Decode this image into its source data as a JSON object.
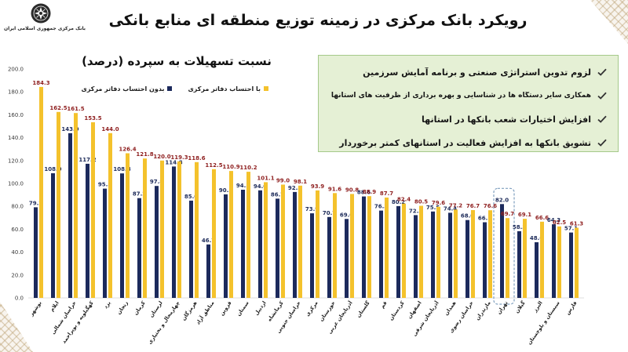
{
  "header": {
    "title": "رویکرد بانک مرکزی در زمینه توزیع منطقه ای منابع بانکی",
    "logo_text": "بانک مرکزی جمهوری اسلامی ایران",
    "logo_icon": "central-bank-emblem-icon"
  },
  "notes": {
    "icon": "check-icon",
    "items": [
      "لزوم تدوین استراتژی صنعتی و برنامه آمایش سرزمین",
      "همکاری سایر دستگاه ها در شناسایی و بهره برداری از ظرفیت های استانها",
      "افزایش اختیارات شعب بانکها در استانها",
      "تشویق بانکها به افزایش فعالیت در استانهای کمتر برخوردار"
    ]
  },
  "colors": {
    "navy": "#1c2a5c",
    "yellow": "#f4c22c",
    "navy_label": "#1d2b5a",
    "yellow_label": "#8e1e1e",
    "note_bg": "#e5f0d5",
    "note_border": "#a5c98a",
    "highlight": "#7f9fbf"
  },
  "chart_data": {
    "type": "bar",
    "title": "نسبت تسهیلات به سپرده (درصد)",
    "xlabel": "",
    "ylabel": "",
    "ylim": [
      0,
      200
    ],
    "yticks": [
      0,
      20,
      40,
      60,
      80,
      100,
      120,
      140,
      160,
      180,
      200
    ],
    "grid": false,
    "legend_position": "top-left",
    "value_labels": true,
    "highlight_category": "تهران",
    "categories": [
      "بوشهر",
      "ایلام",
      "خراسان شمالی",
      "کهگیلویه و بویراحمد",
      "یزد",
      "زنجان",
      "کرمان",
      "لرستان",
      "چهارمحال و بختیاری",
      "هرمزگان",
      "مناطق آزاد",
      "قزوین",
      "سمنان",
      "اردبیل",
      "کرمانشاه",
      "خراسان جنوبی",
      "مرکزی",
      "خوزستان",
      "آذربایجان غربی",
      "گلستان",
      "قم",
      "کردستان",
      "اصفهان",
      "آذربایجان شرقی",
      "همدان",
      "خراسان رضوی",
      "مازندران",
      "تهران",
      "گیلان",
      "البرز",
      "سیستان و بلوچستان",
      "فارس"
    ],
    "series": [
      {
        "name": "بدون احتساب دفاتر مرکزی",
        "color": "#1c2a5c",
        "values": [
          79.2,
          108.9,
          143.9,
          117.2,
          95.5,
          108.8,
          87.2,
          97.8,
          114.8,
          85.0,
          46.7,
          90.5,
          94.5,
          94.0,
          86.7,
          92.5,
          73.9,
          70.7,
          69.0,
          88.6,
          76.3,
          80.2,
          72.3,
          75.5,
          74.4,
          68.0,
          66.1,
          82.0,
          58.3,
          48.6,
          64.3,
          57.1
        ]
      },
      {
        "name": "با احتساب دفاتر مرکزی",
        "color": "#f4c22c",
        "values": [
          184.3,
          162.5,
          161.5,
          153.5,
          144.0,
          126.4,
          121.8,
          120.0,
          119.3,
          118.6,
          112.5,
          110.9,
          110.2,
          101.1,
          99.0,
          98.1,
          93.9,
          91.6,
          90.8,
          88.9,
          87.7,
          82.4,
          80.5,
          79.6,
          77.2,
          76.7,
          76.6,
          69.7,
          69.1,
          66.6,
          62.5,
          61.3
        ]
      }
    ]
  }
}
